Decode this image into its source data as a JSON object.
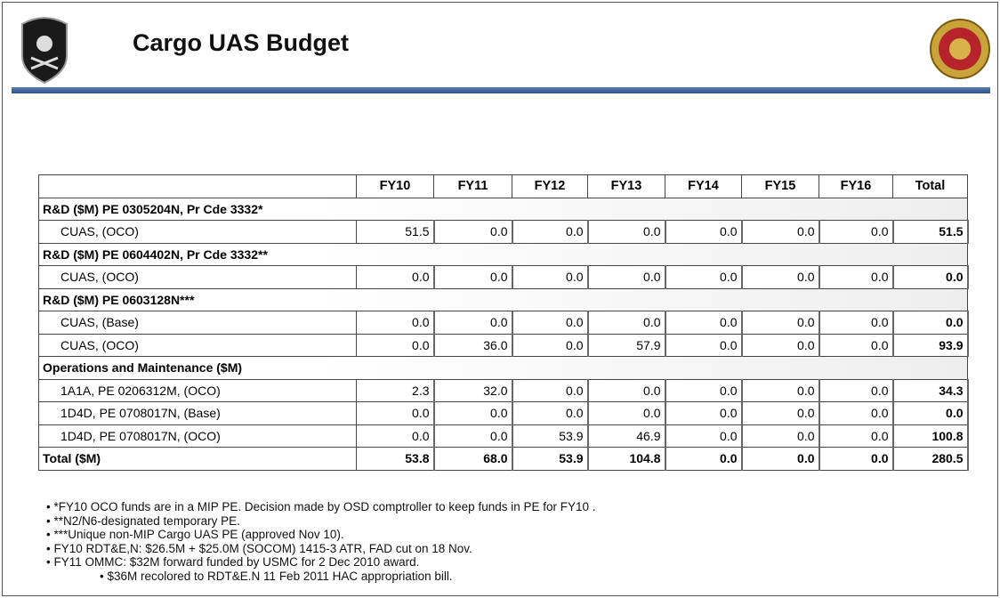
{
  "header": {
    "title": "Cargo UAS Budget"
  },
  "table": {
    "columns": [
      "FY10",
      "FY11",
      "FY12",
      "FY13",
      "FY14",
      "FY15",
      "FY16",
      "Total"
    ],
    "rows": [
      {
        "label": "R&D ($M) PE 0305204N, Pr Cde 3332*"
      },
      {
        "label": "CUAS, (OCO)",
        "values": [
          "51.5",
          "0.0",
          "0.0",
          "0.0",
          "0.0",
          "0.0",
          "0.0",
          "51.5"
        ]
      },
      {
        "label": "R&D ($M) PE 0604402N, Pr Cde 3332**"
      },
      {
        "label": "CUAS, (OCO)",
        "values": [
          "0.0",
          "0.0",
          "0.0",
          "0.0",
          "0.0",
          "0.0",
          "0.0",
          "0.0"
        ]
      },
      {
        "label": "R&D ($M) PE 0603128N***"
      },
      {
        "label": "CUAS, (Base)",
        "values": [
          "0.0",
          "0.0",
          "0.0",
          "0.0",
          "0.0",
          "0.0",
          "0.0",
          "0.0"
        ]
      },
      {
        "label": "CUAS, (OCO)",
        "values": [
          "0.0",
          "36.0",
          "0.0",
          "57.9",
          "0.0",
          "0.0",
          "0.0",
          "93.9"
        ]
      },
      {
        "label": "Operations and Maintenance ($M)"
      },
      {
        "label": "1A1A, PE 0206312M, (OCO)",
        "values": [
          "2.3",
          "32.0",
          "0.0",
          "0.0",
          "0.0",
          "0.0",
          "0.0",
          "34.3"
        ]
      },
      {
        "label": "1D4D, PE 0708017N, (Base)",
        "values": [
          "0.0",
          "0.0",
          "0.0",
          "0.0",
          "0.0",
          "0.0",
          "0.0",
          "0.0"
        ]
      },
      {
        "label": "1D4D, PE 0708017N, (OCO)",
        "values": [
          "0.0",
          "0.0",
          "53.9",
          "46.9",
          "0.0",
          "0.0",
          "0.0",
          "100.8"
        ]
      }
    ],
    "total": {
      "label": "Total ($M)",
      "values": [
        "53.8",
        "68.0",
        "53.9",
        "104.8",
        "0.0",
        "0.0",
        "0.0",
        "280.5"
      ]
    }
  },
  "notes": [
    "*FY10 OCO funds are in a MIP PE.  Decision made by OSD comptroller to keep funds in PE for FY10 .",
    "**N2/N6-designated temporary PE.",
    "***Unique non-MIP Cargo UAS PE  (approved Nov 10).",
    "FY10 RDT&E,N: $26.5M + $25.0M (SOCOM) 1415-3 ATR, FAD cut on 18 Nov.",
    "FY11 OMMC: $32M forward funded by USMC for 2 Dec 2010 award."
  ],
  "subnotes": [
    "$36M recolored to RDT&E.N 11 Feb 2011 HAC  appropriation bill."
  ]
}
